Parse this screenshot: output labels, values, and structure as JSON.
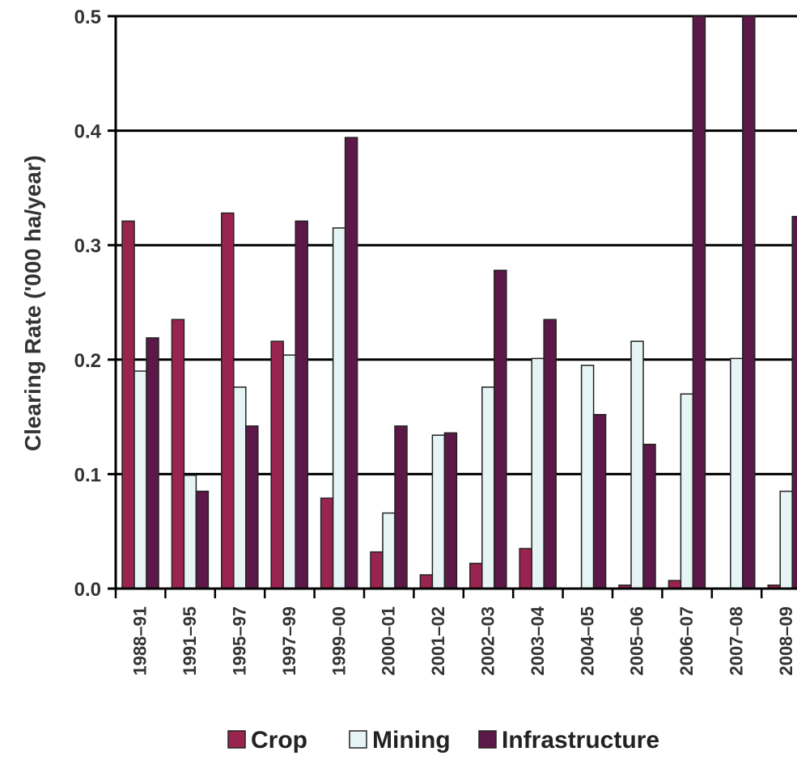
{
  "chart_data": {
    "type": "bar",
    "title": "",
    "xlabel": "",
    "ylabel": "Clearing Rate ('000 ha/year)",
    "ylim": [
      0.0,
      0.5
    ],
    "yticks": [
      "0.0",
      "0.1",
      "0.2",
      "0.3",
      "0.4",
      "0.5"
    ],
    "grid": true,
    "legend_position": "bottom",
    "categories": [
      "1988–91",
      "1991–95",
      "1995–97",
      "1997–99",
      "1999–00",
      "2000–01",
      "2001–02",
      "2002–03",
      "2003–04",
      "2004–05",
      "2005–06",
      "2006–07",
      "2007–08",
      "2008–09"
    ],
    "series": [
      {
        "name": "Crop",
        "color": "#9a2450",
        "values": [
          0.321,
          0.235,
          0.328,
          0.216,
          0.079,
          0.032,
          0.012,
          0.022,
          0.035,
          0.0,
          0.003,
          0.007,
          0.0,
          0.003
        ]
      },
      {
        "name": "Mining",
        "color": "#e6f4f6",
        "values": [
          0.19,
          0.099,
          0.176,
          0.204,
          0.315,
          0.066,
          0.134,
          0.176,
          0.201,
          0.195,
          0.216,
          0.17,
          0.201,
          0.085
        ]
      },
      {
        "name": "Infrastructure",
        "color": "#5c1848",
        "values": [
          0.219,
          0.085,
          0.142,
          0.321,
          0.394,
          0.142,
          0.136,
          0.278,
          0.235,
          0.152,
          0.126,
          0.5,
          0.5,
          0.325
        ]
      }
    ]
  }
}
